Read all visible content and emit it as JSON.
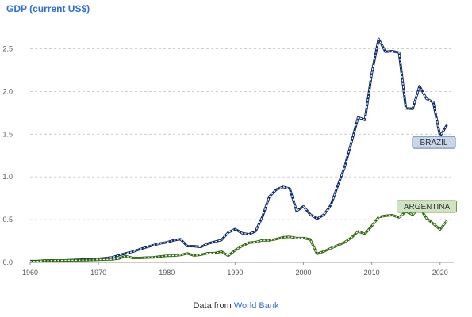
{
  "source": {
    "prefix": "Data from",
    "link_text": "World Bank"
  },
  "chart_data": {
    "type": "line",
    "title": "GDP (current US$)",
    "xlabel": "",
    "ylabel": "",
    "xlim": [
      1960,
      2022
    ],
    "ylim": [
      0,
      2.7
    ],
    "x_ticks": [
      1960,
      1970,
      1980,
      1990,
      2000,
      2010,
      2020
    ],
    "y_ticks": [
      0.0,
      0.5,
      1.0,
      1.5,
      2.0,
      2.5
    ],
    "y_tick_labels": [
      "0.0",
      "0.5",
      "1.0",
      "1.5",
      "2.0",
      "2.5"
    ],
    "grid": "horizontal dashed",
    "series": [
      {
        "name": "BRAZIL",
        "color": "#0d2a6b",
        "label_bg": "#c9d6ea",
        "label_border": "#5f7fb6",
        "x": [
          1960,
          1961,
          1962,
          1963,
          1964,
          1965,
          1966,
          1967,
          1968,
          1969,
          1970,
          1971,
          1972,
          1973,
          1974,
          1975,
          1976,
          1977,
          1978,
          1979,
          1980,
          1981,
          1982,
          1983,
          1984,
          1985,
          1986,
          1987,
          1988,
          1989,
          1990,
          1991,
          1992,
          1993,
          1994,
          1995,
          1996,
          1997,
          1998,
          1999,
          2000,
          2001,
          2002,
          2003,
          2004,
          2005,
          2006,
          2007,
          2008,
          2009,
          2010,
          2011,
          2012,
          2013,
          2014,
          2015,
          2016,
          2017,
          2018,
          2019,
          2020,
          2021
        ],
        "values": [
          0.015,
          0.015,
          0.02,
          0.023,
          0.021,
          0.022,
          0.027,
          0.03,
          0.033,
          0.037,
          0.042,
          0.049,
          0.058,
          0.083,
          0.105,
          0.123,
          0.152,
          0.176,
          0.2,
          0.221,
          0.235,
          0.258,
          0.271,
          0.19,
          0.189,
          0.18,
          0.22,
          0.24,
          0.262,
          0.35,
          0.39,
          0.342,
          0.328,
          0.365,
          0.533,
          0.769,
          0.85,
          0.883,
          0.864,
          0.6,
          0.655,
          0.56,
          0.51,
          0.558,
          0.669,
          0.892,
          1.108,
          1.397,
          1.696,
          1.667,
          2.209,
          2.616,
          2.465,
          2.473,
          2.456,
          1.802,
          1.797,
          2.063,
          1.917,
          1.873,
          1.476,
          1.609
        ]
      },
      {
        "name": "ARGENTINA",
        "color": "#2f6b0a",
        "label_bg": "#cfe3c1",
        "label_border": "#6f9a4d",
        "x": [
          1960,
          1961,
          1962,
          1963,
          1964,
          1965,
          1966,
          1967,
          1968,
          1969,
          1970,
          1971,
          1972,
          1973,
          1974,
          1975,
          1976,
          1977,
          1978,
          1979,
          1980,
          1981,
          1982,
          1983,
          1984,
          1985,
          1986,
          1987,
          1988,
          1989,
          1990,
          1991,
          1992,
          1993,
          1994,
          1995,
          1996,
          1997,
          1998,
          1999,
          2000,
          2001,
          2002,
          2003,
          2004,
          2005,
          2006,
          2007,
          2008,
          2009,
          2010,
          2011,
          2012,
          2013,
          2014,
          2015,
          2016,
          2017,
          2018,
          2019,
          2020,
          2021
        ],
        "values": [
          0.01,
          0.012,
          0.02,
          0.02,
          0.022,
          0.023,
          0.025,
          0.024,
          0.026,
          0.028,
          0.031,
          0.033,
          0.035,
          0.045,
          0.072,
          0.052,
          0.051,
          0.056,
          0.058,
          0.069,
          0.077,
          0.078,
          0.085,
          0.104,
          0.08,
          0.089,
          0.107,
          0.108,
          0.126,
          0.077,
          0.141,
          0.19,
          0.229,
          0.237,
          0.258,
          0.258,
          0.272,
          0.293,
          0.299,
          0.284,
          0.284,
          0.269,
          0.098,
          0.128,
          0.164,
          0.199,
          0.233,
          0.288,
          0.362,
          0.333,
          0.424,
          0.53,
          0.546,
          0.552,
          0.526,
          0.595,
          0.557,
          0.643,
          0.518,
          0.452,
          0.385,
          0.487
        ]
      }
    ]
  }
}
